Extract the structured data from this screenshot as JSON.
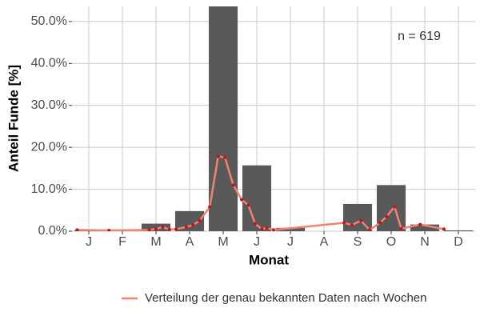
{
  "chart_data": {
    "type": "bar",
    "x_label": "Monat",
    "y_label": "Anteil Funde [%]",
    "annotation": "n = 619",
    "categories": [
      "J",
      "F",
      "M",
      "A",
      "M",
      "J",
      "J",
      "A",
      "S",
      "O",
      "N",
      "D"
    ],
    "values": [
      0.2,
      0,
      1.8,
      4.8,
      54,
      15.7,
      0.8,
      0,
      6.5,
      11,
      1.6,
      0.2
    ],
    "color": "#595959",
    "ylim": [
      0,
      53.6
    ],
    "yticks": [
      {
        "value": 0,
        "label": "0.0%"
      },
      {
        "value": 10,
        "label": "10.0%"
      },
      {
        "value": 20,
        "label": "20.0%"
      },
      {
        "value": 30,
        "label": "30.0%"
      },
      {
        "value": 40,
        "label": "40.0%"
      },
      {
        "value": 50,
        "label": "50.0%"
      }
    ],
    "grid": true,
    "legend_position": "bottom",
    "line": {
      "name": "Verteilung der genau bekannten Daten nach Wochen",
      "color": "#f08272",
      "point_color": "#c0141a",
      "x": [
        0.65,
        1.6,
        2.8,
        3.0,
        3.2,
        3.4,
        3.6,
        3.9,
        4.1,
        4.3,
        4.6,
        4.85,
        5.05,
        5.3,
        5.55,
        5.75,
        5.95,
        6.15,
        6.3,
        6.5,
        8.6,
        8.83,
        9.1,
        9.36,
        9.67,
        9.86,
        10.1,
        10.3,
        10.86,
        11.57
      ],
      "values": [
        0.3,
        0.2,
        0.3,
        0.5,
        1.0,
        0.4,
        0.5,
        1.0,
        1.5,
        2.5,
        5.8,
        17.8,
        17.6,
        11,
        7.5,
        6.2,
        1.8,
        0.5,
        0.8,
        0.3,
        2.0,
        1.5,
        2.5,
        0.3,
        2.0,
        3.5,
        5.8,
        0.6,
        1.6,
        0.5
      ]
    }
  }
}
